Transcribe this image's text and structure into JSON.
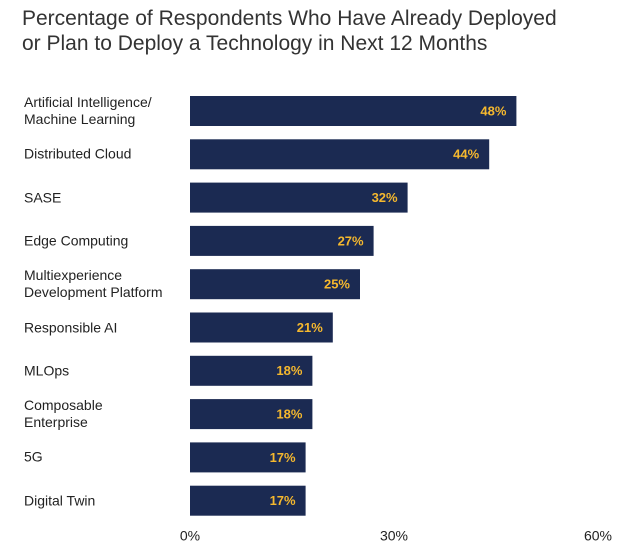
{
  "chart_data": {
    "type": "bar",
    "orientation": "horizontal",
    "title": "Percentage of Respondents Who Have Already Deployed\nor Plan to Deploy a Technology in Next 12 Months",
    "categories": [
      "Artificial Intelligence/\nMachine Learning",
      "Distributed Cloud",
      "SASE",
      "Edge Computing",
      "Multiexperience\nDevelopment Platform",
      "Responsible AI",
      "MLOps",
      "Composable\nEnterprise",
      "5G",
      "Digital Twin"
    ],
    "values": [
      48,
      44,
      32,
      27,
      25,
      21,
      18,
      18,
      17,
      17
    ],
    "value_labels": [
      "48%",
      "44%",
      "32%",
      "27%",
      "25%",
      "21%",
      "18%",
      "18%",
      "17%",
      "17%"
    ],
    "color": "#1b2a52",
    "value_label_color": "#f5b82e",
    "xlim": [
      0,
      60
    ],
    "xticks": [
      {
        "value": 0,
        "label": "0%"
      },
      {
        "value": 30,
        "label": "30%"
      },
      {
        "value": 60,
        "label": "60%"
      }
    ]
  }
}
